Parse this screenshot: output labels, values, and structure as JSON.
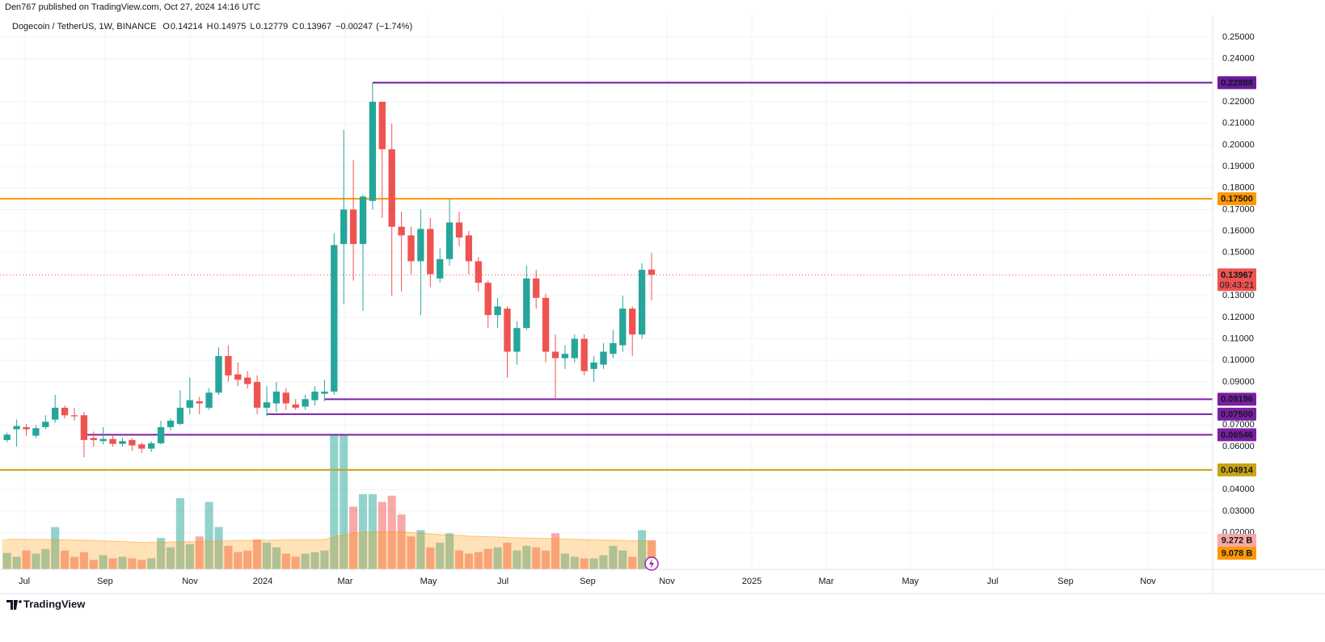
{
  "header": "Den767 published on TradingView.com, Oct 27, 2024 14:16 UTC",
  "footer": "TradingView",
  "chart_data": {
    "type": "candlestick",
    "title": "Dogecoin / TetherUS, 1W, BINANCE",
    "ohlc_labels": [
      "O",
      "H",
      "L",
      "C"
    ],
    "change": {
      "value": -0.00247,
      "label": "−0.00247"
    },
    "change_pct": {
      "value": -1.74,
      "label": "(−1.74%)"
    },
    "countdown": "09:43:21",
    "up_color": "#26a69a",
    "down_color": "#ef5350",
    "open": [
      0.063,
      0.068,
      0.069,
      0.065,
      0.069,
      0.0725,
      0.078,
      0.0745,
      0.0745,
      0.064,
      0.0625,
      0.0635,
      0.0612,
      0.063,
      0.061,
      0.059,
      0.0615,
      0.069,
      0.0705,
      0.078,
      0.081,
      0.078,
      0.085,
      0.102,
      0.0935,
      0.092,
      0.09,
      0.078,
      0.08,
      0.085,
      0.0795,
      0.0785,
      0.0815,
      0.0845,
      0.0855,
      0.154,
      0.17,
      0.154,
      0.174,
      0.22,
      0.198,
      0.162,
      0.158,
      0.146,
      0.161,
      0.138,
      0.147,
      0.164,
      0.158,
      0.146,
      0.136,
      0.121,
      0.124,
      0.104,
      0.115,
      0.138,
      0.129,
      0.104,
      0.101,
      0.101,
      0.11,
      0.096,
      0.098,
      0.103,
      0.107,
      0.124,
      0.112,
      0.14214
    ],
    "high": [
      0.0665,
      0.0725,
      0.0705,
      0.07,
      0.0745,
      0.084,
      0.079,
      0.078,
      0.076,
      0.067,
      0.069,
      0.065,
      0.064,
      0.064,
      0.062,
      0.0625,
      0.072,
      0.073,
      0.086,
      0.092,
      0.083,
      0.087,
      0.106,
      0.107,
      0.099,
      0.095,
      0.093,
      0.088,
      0.09,
      0.087,
      0.082,
      0.084,
      0.088,
      0.091,
      0.159,
      0.207,
      0.193,
      0.177,
      0.22888,
      0.22,
      0.21,
      0.169,
      0.162,
      0.17,
      0.166,
      0.152,
      0.175,
      0.169,
      0.16,
      0.148,
      0.137,
      0.129,
      0.125,
      0.118,
      0.144,
      0.142,
      0.131,
      0.112,
      0.107,
      0.112,
      0.112,
      0.102,
      0.108,
      0.114,
      0.13,
      0.125,
      0.145,
      0.14975
    ],
    "low": [
      0.062,
      0.06,
      0.065,
      0.064,
      0.068,
      0.071,
      0.073,
      0.072,
      0.055,
      0.06,
      0.061,
      0.06,
      0.06,
      0.058,
      0.057,
      0.0575,
      0.061,
      0.0675,
      0.07,
      0.075,
      0.075,
      0.077,
      0.084,
      0.09,
      0.088,
      0.087,
      0.075,
      0.074,
      0.076,
      0.077,
      0.077,
      0.077,
      0.079,
      0.081,
      0.084,
      0.126,
      0.137,
      0.123,
      0.17,
      0.166,
      0.13,
      0.132,
      0.14,
      0.121,
      0.134,
      0.136,
      0.144,
      0.153,
      0.14,
      0.132,
      0.115,
      0.115,
      0.092,
      0.098,
      0.114,
      0.124,
      0.099,
      0.08196,
      0.096,
      0.099,
      0.093,
      0.09,
      0.096,
      0.101,
      0.104,
      0.102,
      0.11,
      0.12779
    ],
    "close": [
      0.0655,
      0.0695,
      0.068,
      0.0685,
      0.0715,
      0.078,
      0.0745,
      0.074,
      0.063,
      0.063,
      0.0635,
      0.0612,
      0.0625,
      0.0605,
      0.059,
      0.0615,
      0.069,
      0.072,
      0.078,
      0.0815,
      0.08,
      0.085,
      0.102,
      0.093,
      0.091,
      0.089,
      0.078,
      0.0805,
      0.0855,
      0.08,
      0.078,
      0.082,
      0.0855,
      0.0855,
      0.1535,
      0.17,
      0.154,
      0.176,
      0.22,
      0.198,
      0.162,
      0.158,
      0.146,
      0.161,
      0.14,
      0.147,
      0.164,
      0.157,
      0.146,
      0.136,
      0.121,
      0.125,
      0.104,
      0.115,
      0.138,
      0.129,
      0.104,
      0.101,
      0.103,
      0.11,
      0.095,
      0.099,
      0.104,
      0.108,
      0.124,
      0.112,
      0.142,
      0.13967
    ],
    "volume": {
      "up_color": "rgba(38,166,154,0.5)",
      "down_color": "rgba(239,83,80,0.5)",
      "label_color": "#f7a9a7",
      "last_label": "9.272 B",
      "values": [
        5.2,
        4.0,
        6.0,
        5.0,
        6.5,
        13.5,
        6.0,
        4.0,
        5.5,
        3.0,
        4.5,
        3.5,
        4.0,
        3.5,
        3.0,
        3.5,
        10.0,
        7.0,
        22.7,
        8.0,
        10.5,
        21.5,
        13.5,
        7.5,
        5.5,
        6.0,
        9.5,
        8.5,
        7.0,
        5.0,
        4.0,
        5.0,
        5.5,
        6.0,
        43.0,
        43.0,
        20.0,
        24.0,
        24.0,
        21.5,
        23.5,
        17.5,
        10.5,
        12.5,
        7.0,
        8.5,
        11.5,
        6.0,
        5.0,
        5.5,
        6.5,
        7.0,
        8.5,
        6.0,
        7.5,
        7.0,
        6.0,
        11.5,
        5.0,
        4.0,
        3.5,
        3.5,
        4.5,
        7.5,
        6.0,
        4.0,
        12.5,
        9.272
      ]
    },
    "volume_ma": {
      "color": "#ff9800",
      "last_label": "9.078 B",
      "values": [
        9.6,
        9.6,
        9.5,
        9.5,
        9.5,
        9.4,
        9.4,
        9.3,
        9.3,
        9.2,
        9.1,
        9.0,
        8.9,
        8.7,
        8.6,
        8.6,
        8.6,
        8.7,
        8.8,
        8.8,
        8.9,
        9.0,
        9.1,
        9.1,
        9.2,
        9.2,
        9.3,
        9.3,
        9.3,
        9.4,
        9.4,
        9.4,
        9.4,
        9.5,
        10.3,
        11.0,
        11.5,
        11.9,
        12.0,
        12.0,
        11.9,
        11.9,
        11.8,
        11.5,
        11.3,
        11.1,
        11.0,
        10.8,
        10.6,
        10.5,
        10.4,
        10.3,
        10.2,
        10.1,
        10.0,
        9.9,
        9.9,
        9.8,
        9.7,
        9.6,
        9.5,
        9.4,
        9.3,
        9.3,
        9.2,
        9.1,
        9.1,
        9.078
      ]
    },
    "volume_ylim": [
      0,
      174
    ],
    "levels": [
      {
        "value": 0.22888,
        "color": "#6a1b9a",
        "text_color": "#ffffff",
        "start": 38
      },
      {
        "value": 0.175,
        "label": "0.17500",
        "color": "#ff9800",
        "text_color": "#131722"
      },
      {
        "value": 0.08196,
        "color": "#7b1fa2",
        "text_color": "#ffffff",
        "start": 33
      },
      {
        "value": 0.075,
        "label": "0.07500",
        "color": "#7b1fa2",
        "text_color": "#ffffff",
        "start": 27
      },
      {
        "value": 0.06546,
        "color": "#7b1fa2",
        "text_color": "#ffffff",
        "start": 8
      },
      {
        "value": 0.04914,
        "color": "#c8a415",
        "text_color": "#131722"
      }
    ],
    "xlim": [
      -0.73,
      125.32
    ],
    "xticks": [
      {
        "value": 1.79,
        "label": "Jul"
      },
      {
        "value": 10.19,
        "label": "Sep"
      },
      {
        "value": 19.02,
        "label": "Nov"
      },
      {
        "value": 26.58,
        "label": "2024"
      },
      {
        "value": 35.15,
        "label": "Mar"
      },
      {
        "value": 43.81,
        "label": "May"
      },
      {
        "value": 51.54,
        "label": "Jul"
      },
      {
        "value": 60.36,
        "label": "Sep"
      },
      {
        "value": 68.6,
        "label": "Nov"
      },
      {
        "value": 77.42,
        "label": "2025"
      },
      {
        "value": 85.15,
        "label": "Mar"
      },
      {
        "value": 93.89,
        "label": "May"
      },
      {
        "value": 102.46,
        "label": "Jul"
      },
      {
        "value": 110.03,
        "label": "Sep"
      },
      {
        "value": 118.6,
        "label": "Nov"
      }
    ],
    "ylim": [
      0.003,
      0.256
    ],
    "yticks": [
      {
        "value": 0.25,
        "label": "0.25000"
      },
      {
        "value": 0.24,
        "label": "0.24000"
      },
      {
        "value": 0.22,
        "label": "0.22000"
      },
      {
        "value": 0.21,
        "label": "0.21000"
      },
      {
        "value": 0.2,
        "label": "0.20000"
      },
      {
        "value": 0.19,
        "label": "0.19000"
      },
      {
        "value": 0.18,
        "label": "0.18000"
      },
      {
        "value": 0.17,
        "label": "0.17000"
      },
      {
        "value": 0.16,
        "label": "0.16000"
      },
      {
        "value": 0.15,
        "label": "0.15000"
      },
      {
        "value": 0.13,
        "label": "0.13000"
      },
      {
        "value": 0.12,
        "label": "0.12000"
      },
      {
        "value": 0.11,
        "label": "0.11000"
      },
      {
        "value": 0.1,
        "label": "0.10000"
      },
      {
        "value": 0.09,
        "label": "0.09000"
      },
      {
        "value": 0.07,
        "label": "0.07000"
      },
      {
        "value": 0.06,
        "label": "0.06000"
      },
      {
        "value": 0.04,
        "label": "0.04000"
      },
      {
        "value": 0.03,
        "label": "0.03000"
      },
      {
        "value": 0.02,
        "label": "0.02000"
      }
    ],
    "grid": true
  }
}
